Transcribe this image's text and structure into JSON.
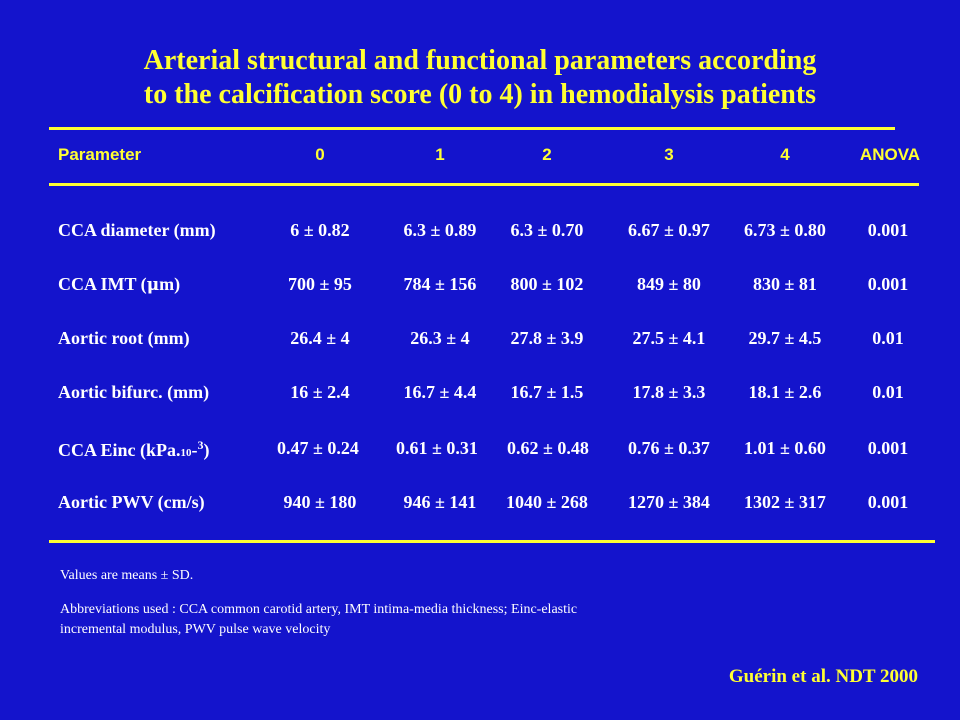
{
  "title_line1": "Arterial structural and functional parameters according",
  "title_line2": "to the calcification score (0 to 4) in hemodialysis patients",
  "header": {
    "parameter": "Parameter",
    "col0": "0",
    "col1": "1",
    "col2": "2",
    "col3": "3",
    "col4": "4",
    "anova": "ANOVA"
  },
  "rows": [
    {
      "label": "CCA diameter (mm)",
      "v0": "6 ± 0.82",
      "v1": "6.3 ± 0.89",
      "v2": "6.3 ± 0.70",
      "v3": "6.67 ± 0.97",
      "v4": "6.73 ± 0.80",
      "anova": "0.001"
    },
    {
      "label_pre": "CCA IMT (",
      "label_mu": "μ",
      "label_post": "m)",
      "v0": "700 ± 95",
      "v1": "784 ± 156",
      "v2": "800 ± 102",
      "v3": "849 ± 80",
      "v4": "830 ± 81",
      "anova": "0.001"
    },
    {
      "label": "Aortic root (mm)",
      "v0": "26.4 ± 4",
      "v1": "26.3 ± 4",
      "v2": "27.8 ± 3.9",
      "v3": "27.5 ± 4.1",
      "v4": "29.7 ± 4.5",
      "anova": "0.01"
    },
    {
      "label": "Aortic bifurc. (mm)",
      "v0": "16 ± 2.4",
      "v1": "16.7 ± 4.4",
      "v2": "16.7 ± 1.5",
      "v3": "17.8 ± 3.3",
      "v4": "18.1 ± 2.6",
      "anova": "0.01"
    },
    {
      "label_pre": "CCA Einc (kPa.",
      "label_sub": "10",
      "label_mid": "-",
      "label_sup": "3",
      "label_post": ")",
      "v0": "0.47 ± 0.24",
      "v1": "0.61 ± 0.31",
      "v2": "0.62 ± 0.48",
      "v3": "0.76 ± 0.37",
      "v4": "1.01 ± 0.60",
      "anova": "0.001"
    },
    {
      "label": "Aortic PWV (cm/s)",
      "v0": "940 ± 180",
      "v1": "946 ± 141",
      "v2": "1040 ± 268",
      "v3": "1270 ± 384",
      "v4": "1302 ± 317",
      "anova": "0.001"
    }
  ],
  "note_means": "Values are means ± SD.",
  "note_abbrev_line1": "Abbreviations used : CCA common carotid artery, IMT intima-media thickness; Einc-elastic",
  "note_abbrev_line2": "incremental modulus, PWV pulse wave velocity",
  "citation": "Guérin et al. NDT 2000",
  "colors": {
    "background": "#1414cc",
    "accent": "#ffff33",
    "text": "#ffffff"
  }
}
